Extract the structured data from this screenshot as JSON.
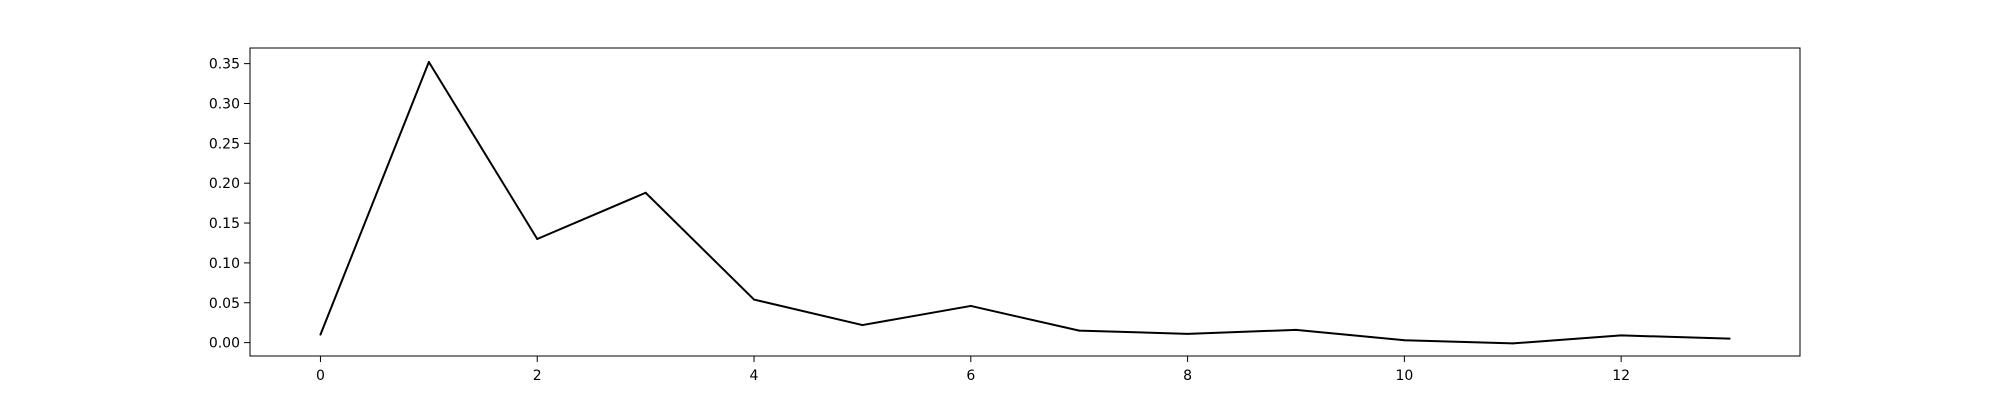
{
  "chart_data": {
    "type": "line",
    "x": [
      0,
      1,
      2,
      3,
      4,
      5,
      6,
      7,
      8,
      9,
      10,
      11,
      12,
      13
    ],
    "series": [
      {
        "values": [
          0.01,
          0.352,
          0.13,
          0.188,
          0.054,
          0.022,
          0.046,
          0.015,
          0.011,
          0.016,
          0.003,
          -0.001,
          0.009,
          0.005
        ],
        "color": "#000000"
      }
    ],
    "xlim": [
      -0.65,
      13.65
    ],
    "ylim": [
      -0.0168,
      0.3696
    ],
    "xticks": [
      "0",
      "2",
      "4",
      "6",
      "8",
      "10",
      "12"
    ],
    "yticks": [
      "0.00",
      "0.05",
      "0.10",
      "0.15",
      "0.20",
      "0.25",
      "0.30",
      "0.35"
    ],
    "grid": false,
    "title": "",
    "xlabel": "",
    "ylabel": ""
  }
}
